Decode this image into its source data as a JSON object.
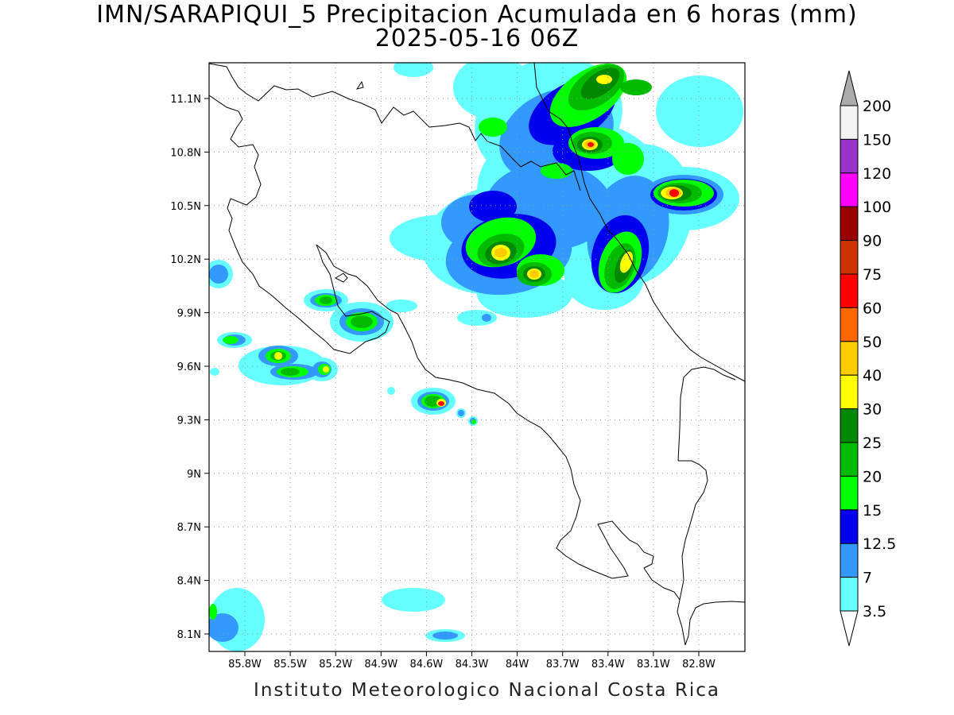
{
  "title_line1": "IMN/SARAPIQUI_5 Precipitacion Acumulada en 6 horas (mm)",
  "title_line2": "2025-05-16 06Z",
  "footer": "Instituto Meteorologico Nacional Costa Rica",
  "map": {
    "lon_labels": [
      "85.8W",
      "85.5W",
      "85.2W",
      "84.9W",
      "84.6W",
      "84.3W",
      "84W",
      "83.7W",
      "83.4W",
      "83.1W",
      "82.8W"
    ],
    "lat_labels": [
      "11.1N",
      "10.8N",
      "10.5N",
      "10.2N",
      "9.9N",
      "9.6N",
      "9.3N",
      "9N",
      "8.7N",
      "8.4N",
      "8.1N"
    ]
  },
  "colorbar": {
    "levels": [
      {
        "label": "200",
        "color": "#f4f4f4"
      },
      {
        "label": "150",
        "color": "#9933cc"
      },
      {
        "label": "120",
        "color": "#ff00ff"
      },
      {
        "label": "100",
        "color": "#990000"
      },
      {
        "label": "90",
        "color": "#cc3300"
      },
      {
        "label": "75",
        "color": "#ff0000"
      },
      {
        "label": "60",
        "color": "#ff6600"
      },
      {
        "label": "50",
        "color": "#ffcc00"
      },
      {
        "label": "40",
        "color": "#ffff00"
      },
      {
        "label": "30",
        "color": "#008800"
      },
      {
        "label": "25",
        "color": "#00bb00"
      },
      {
        "label": "20",
        "color": "#00ff00"
      },
      {
        "label": "15",
        "color": "#0000ee"
      },
      {
        "label": "12.5",
        "color": "#3399ff"
      },
      {
        "label": "7",
        "color": "#66ffff"
      },
      {
        "label": "3.5",
        "color": ""
      }
    ],
    "top_arrow_color": "#aaaaaa"
  },
  "precip_colors": {
    "c3_5": "#66ffff",
    "c7": "#3399ff",
    "c12_5": "#0000ee",
    "c15": "#00ff00",
    "c20": "#00bb00",
    "c25": "#008800",
    "c30": "#ffff00",
    "c40": "#ffcc00",
    "c50": "#ff6600",
    "c60": "#ff0000",
    "c75": "#cc3300"
  }
}
